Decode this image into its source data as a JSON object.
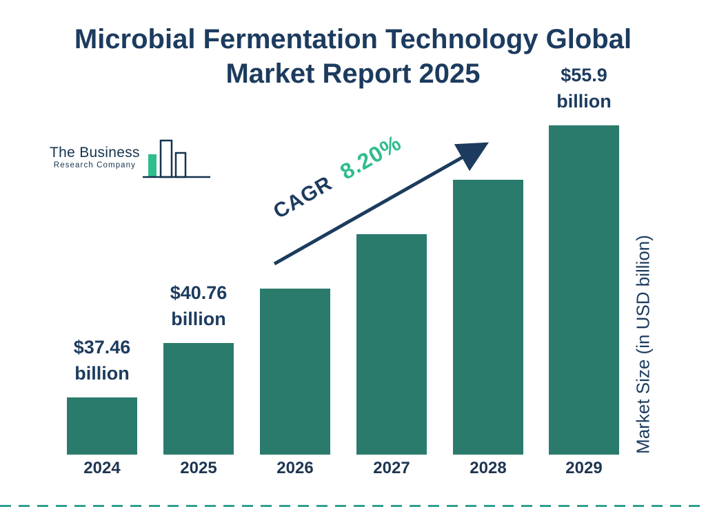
{
  "title": "Microbial Fermentation Technology Global Market Report 2025",
  "logo": {
    "line1": "The Business",
    "line2": "Research Company"
  },
  "annotation": {
    "cagr_label": "CAGR",
    "cagr_value": "8.20%"
  },
  "ylabel": "Market Size (in USD billion)",
  "chart_data": {
    "type": "bar",
    "title": "Microbial Fermentation Technology Global Market Report 2025",
    "categories": [
      "2024",
      "2025",
      "2026",
      "2027",
      "2028",
      "2029"
    ],
    "values": [
      37.46,
      40.76,
      44.11,
      47.73,
      51.64,
      55.9
    ],
    "value_labels": [
      "$37.46 billion",
      "$40.76 billion",
      null,
      null,
      null,
      "$55.9 billion"
    ],
    "cagr": "8.20%",
    "xlabel": "",
    "ylabel": "Market Size (in USD billion)",
    "grid": false,
    "legend_position": "none",
    "bar_color": "#2a7b6c"
  },
  "colors": {
    "bar": "#2a7b6c",
    "navy": "#1c3b5e",
    "green": "#2ebd8b",
    "dashed_line": "#2f9f8f"
  }
}
